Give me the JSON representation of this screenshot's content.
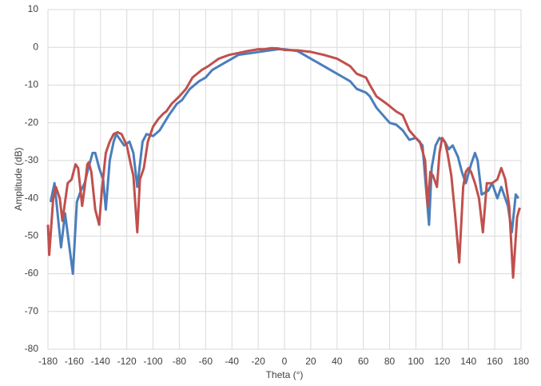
{
  "chart_data": {
    "type": "line",
    "x_label": "Theta (°)",
    "y_label": "Amplitude (dB)",
    "xlim": [
      -180,
      180
    ],
    "xticks": [
      -180,
      -160,
      -140,
      -120,
      -100,
      -80,
      -60,
      -40,
      -20,
      0,
      20,
      40,
      60,
      80,
      100,
      120,
      140,
      160,
      180
    ],
    "ylim": [
      -80,
      10
    ],
    "yticks": [
      -80,
      -70,
      -60,
      -50,
      -40,
      -30,
      -20,
      -10,
      0,
      10
    ],
    "grid": true,
    "series": [
      {
        "color": "#4a7ebb",
        "x": [
          -178,
          -175,
          -170,
          -167,
          -161,
          -158,
          -155,
          -152,
          -150,
          -146,
          -144,
          -141,
          -138,
          -136,
          -133,
          -130,
          -128,
          -122,
          -118,
          -115,
          -112,
          -108,
          -105,
          -100,
          -95,
          -88,
          -82,
          -78,
          -72,
          -65,
          -60,
          -55,
          -45,
          -40,
          -35,
          -25,
          -15,
          -5,
          0,
          10,
          15,
          20,
          25,
          30,
          35,
          40,
          45,
          50,
          55,
          62,
          65,
          70,
          75,
          80,
          85,
          90,
          95,
          100,
          105,
          110,
          112,
          115,
          118,
          122,
          125,
          128,
          132,
          135,
          138,
          142,
          145,
          147,
          150,
          155,
          158,
          162,
          165,
          170,
          173,
          176,
          178
        ],
        "values": [
          -41,
          -36,
          -53,
          -44,
          -60,
          -41,
          -38,
          -36,
          -33,
          -28,
          -28,
          -32,
          -35,
          -43,
          -30,
          -25,
          -23,
          -26,
          -25,
          -28,
          -37,
          -25,
          -23,
          -23.5,
          -22,
          -18,
          -15,
          -14,
          -11,
          -9,
          -8,
          -6,
          -4,
          -3,
          -2,
          -1.5,
          -1,
          -0.5,
          -0.5,
          -1,
          -2,
          -3,
          -4,
          -5,
          -6,
          -7,
          -8,
          -9,
          -11,
          -12,
          -13,
          -16,
          -18,
          -20,
          -20.5,
          -22,
          -24.5,
          -24,
          -26,
          -47,
          -32,
          -26,
          -24,
          -25,
          -27,
          -26,
          -29,
          -33,
          -36,
          -31,
          -28,
          -30,
          -39,
          -38,
          -36,
          -40,
          -37,
          -42,
          -49,
          -39,
          -40
        ]
      },
      {
        "color": "#c0504d",
        "x": [
          -180,
          -179,
          -176,
          -174,
          -171,
          -169,
          -165,
          -162,
          -159,
          -157,
          -154,
          -152,
          -150,
          -149,
          -147,
          -144,
          -141,
          -139,
          -136,
          -133,
          -130,
          -127,
          -124,
          -120,
          -117,
          -115,
          -112,
          -110,
          -107,
          -104,
          -100,
          -96,
          -92,
          -90,
          -86,
          -80,
          -75,
          -70,
          -63,
          -58,
          -50,
          -42,
          -35,
          -28,
          -20,
          -15,
          -10,
          -5,
          0,
          10,
          20,
          30,
          40,
          45,
          50,
          55,
          62,
          65,
          70,
          78,
          85,
          90,
          95,
          100,
          103,
          107,
          109,
          111,
          113,
          116,
          118,
          120,
          122,
          124,
          127,
          130,
          133,
          136,
          138,
          140,
          142,
          145,
          148,
          151,
          154,
          158,
          162,
          165,
          168,
          171,
          174,
          177,
          179
        ],
        "values": [
          -47,
          -55,
          -40,
          -37,
          -40,
          -46,
          -36,
          -35,
          -31,
          -32,
          -42,
          -37,
          -31,
          -30.5,
          -33,
          -43,
          -47,
          -38,
          -28,
          -25,
          -23,
          -22.5,
          -23,
          -26,
          -31,
          -34,
          -49,
          -35,
          -32,
          -25,
          -21,
          -19,
          -17.5,
          -17,
          -15,
          -13,
          -11,
          -8,
          -6,
          -5,
          -3,
          -2,
          -1.5,
          -1,
          -0.5,
          -0.5,
          -0.2,
          -0.3,
          -0.7,
          -0.8,
          -1.2,
          -2,
          -3,
          -4,
          -5,
          -7,
          -8,
          -10,
          -13,
          -15,
          -17,
          -18,
          -22,
          -24,
          -25,
          -30,
          -42,
          -33,
          -34,
          -37,
          -28,
          -24,
          -25,
          -28,
          -34,
          -45,
          -57,
          -37,
          -33,
          -32,
          -33,
          -36,
          -40,
          -49,
          -36,
          -36,
          -35,
          -32,
          -35,
          -42,
          -61,
          -45,
          -42.5
        ]
      }
    ]
  }
}
